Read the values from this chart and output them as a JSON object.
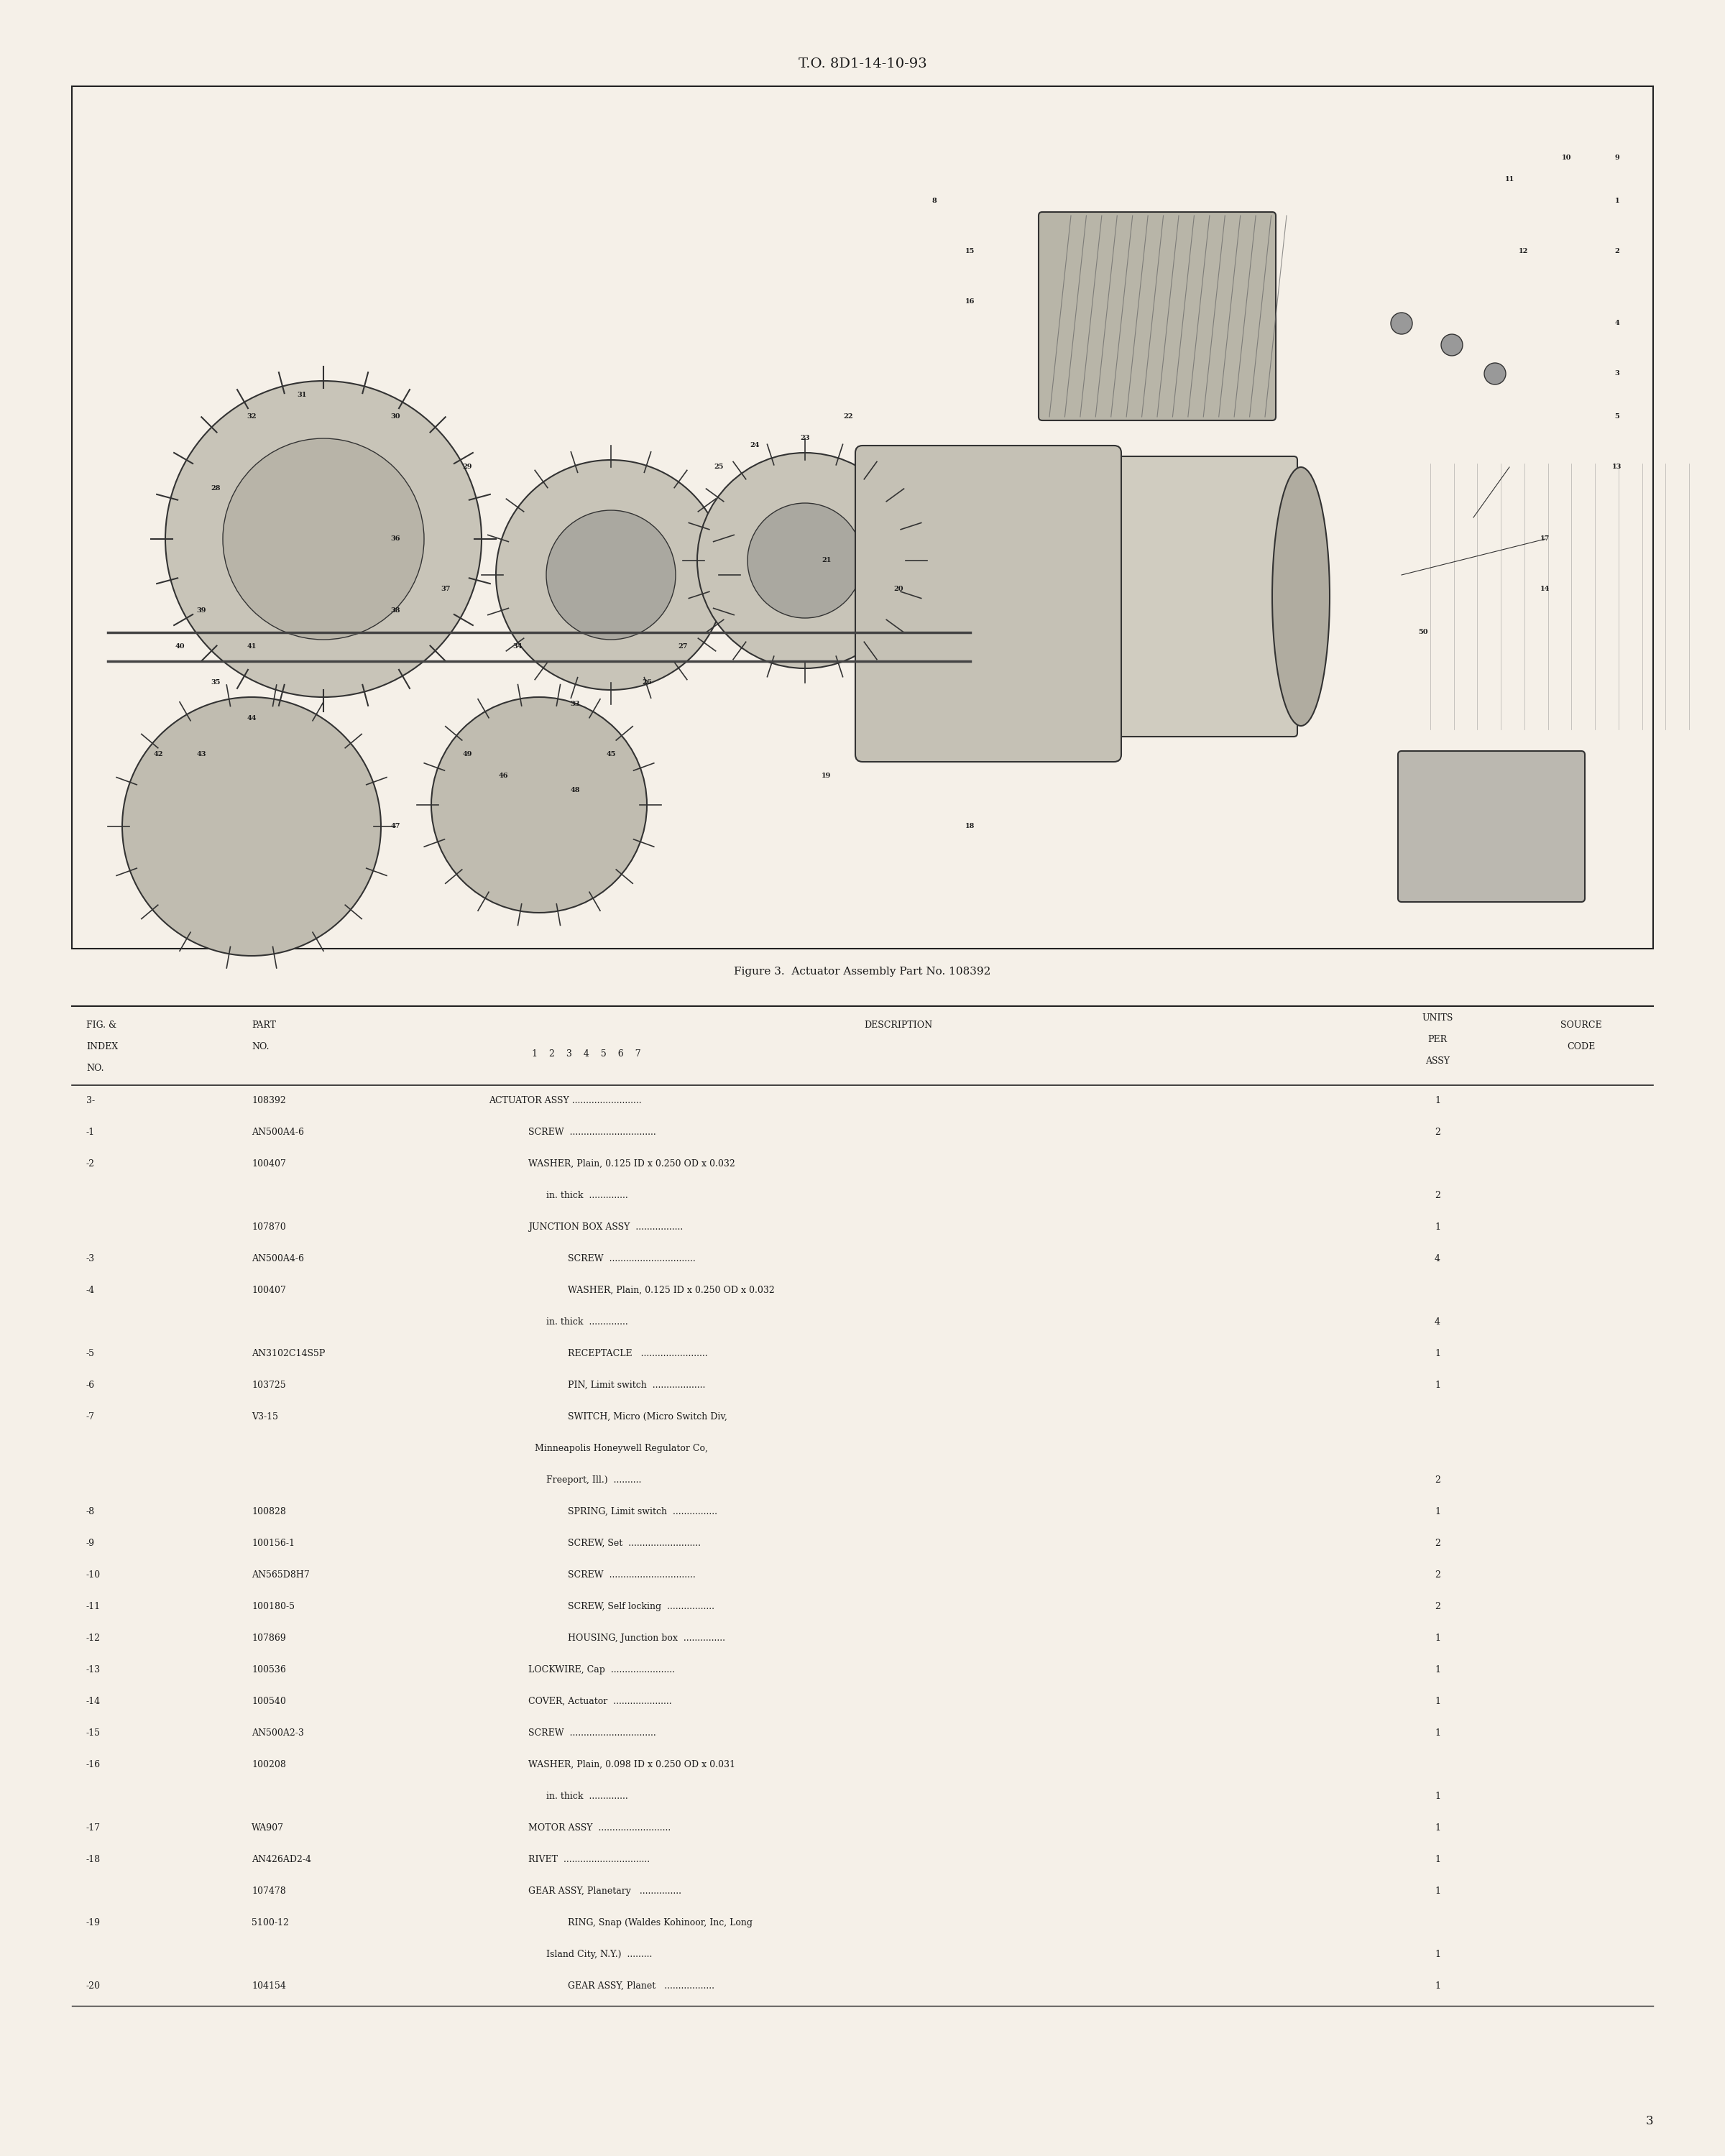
{
  "header_text": "T.O. 8D1-14-10-93",
  "figure_caption": "Figure 3.  Actuator Assembly Part No. 108392",
  "page_number": "3",
  "bg_color": "#f5f0e8",
  "table_header": {
    "col1": "FIG. &\nINDEX\nNO.",
    "col2": "PART\nNO.",
    "col3": "DESCRIPTION",
    "col4": "UNITS\nPER\nASSY",
    "col5": "SOURCE\nCODE",
    "sub_cols": "1    2    3    4    5    6    7"
  },
  "rows": [
    {
      "fig": "3-",
      "part": "108392",
      "indent": 0,
      "desc": "ACTUATOR ASSY .........................",
      "units": "1",
      "source": ""
    },
    {
      "fig": "-1",
      "part": "AN500A4-6",
      "indent": 1,
      "desc": "SCREW  ...............................",
      "units": "2",
      "source": ""
    },
    {
      "fig": "-2",
      "part": "100407",
      "indent": 1,
      "desc": "WASHER, Plain, 0.125 ID x 0.250 OD x 0.032",
      "units": "",
      "source": ""
    },
    {
      "fig": "",
      "part": "",
      "indent": 0,
      "desc": "                    in. thick  ..............",
      "units": "2",
      "source": ""
    },
    {
      "fig": "",
      "part": "107870",
      "indent": 1,
      "desc": "JUNCTION BOX ASSY  .................",
      "units": "1",
      "source": ""
    },
    {
      "fig": "-3",
      "part": "AN500A4-6",
      "indent": 2,
      "desc": "SCREW  ...............................",
      "units": "4",
      "source": ""
    },
    {
      "fig": "-4",
      "part": "100407",
      "indent": 2,
      "desc": "WASHER, Plain, 0.125 ID x 0.250 OD x 0.032",
      "units": "",
      "source": ""
    },
    {
      "fig": "",
      "part": "",
      "indent": 0,
      "desc": "                    in. thick  ..............",
      "units": "4",
      "source": ""
    },
    {
      "fig": "-5",
      "part": "AN3102C14S5P",
      "indent": 2,
      "desc": "RECEPTACLE   ........................",
      "units": "1",
      "source": ""
    },
    {
      "fig": "-6",
      "part": "103725",
      "indent": 2,
      "desc": "PIN, Limit switch  ...................",
      "units": "1",
      "source": ""
    },
    {
      "fig": "-7",
      "part": "V3-15",
      "indent": 2,
      "desc": "SWITCH, Micro (Micro Switch Div,",
      "units": "",
      "source": ""
    },
    {
      "fig": "",
      "part": "",
      "indent": 0,
      "desc": "                Minneapolis Honeywell Regulator Co,",
      "units": "",
      "source": ""
    },
    {
      "fig": "",
      "part": "",
      "indent": 0,
      "desc": "                    Freeport, Ill.)  ..........",
      "units": "2",
      "source": ""
    },
    {
      "fig": "-8",
      "part": "100828",
      "indent": 2,
      "desc": "SPRING, Limit switch  ................",
      "units": "1",
      "source": ""
    },
    {
      "fig": "-9",
      "part": "100156-1",
      "indent": 2,
      "desc": "SCREW, Set  ..........................",
      "units": "2",
      "source": ""
    },
    {
      "fig": "-10",
      "part": "AN565D8H7",
      "indent": 2,
      "desc": "SCREW  ...............................",
      "units": "2",
      "source": ""
    },
    {
      "fig": "-11",
      "part": "100180-5",
      "indent": 2,
      "desc": "SCREW, Self locking  .................",
      "units": "2",
      "source": ""
    },
    {
      "fig": "-12",
      "part": "107869",
      "indent": 2,
      "desc": "HOUSING, Junction box  ...............",
      "units": "1",
      "source": ""
    },
    {
      "fig": "-13",
      "part": "100536",
      "indent": 1,
      "desc": "LOCKWIRE, Cap  .......................",
      "units": "1",
      "source": ""
    },
    {
      "fig": "-14",
      "part": "100540",
      "indent": 1,
      "desc": "COVER, Actuator  .....................",
      "units": "1",
      "source": ""
    },
    {
      "fig": "-15",
      "part": "AN500A2-3",
      "indent": 1,
      "desc": "SCREW  ...............................",
      "units": "1",
      "source": ""
    },
    {
      "fig": "-16",
      "part": "100208",
      "indent": 1,
      "desc": "WASHER, Plain, 0.098 ID x 0.250 OD x 0.031",
      "units": "",
      "source": ""
    },
    {
      "fig": "",
      "part": "",
      "indent": 0,
      "desc": "                    in. thick  ..............",
      "units": "1",
      "source": ""
    },
    {
      "fig": "-17",
      "part": "WA907",
      "indent": 1,
      "desc": "MOTOR ASSY  ..........................",
      "units": "1",
      "source": ""
    },
    {
      "fig": "-18",
      "part": "AN426AD2-4",
      "indent": 1,
      "desc": "RIVET  ...............................",
      "units": "1",
      "source": ""
    },
    {
      "fig": "",
      "part": "107478",
      "indent": 1,
      "desc": "GEAR ASSY, Planetary   ...............",
      "units": "1",
      "source": ""
    },
    {
      "fig": "-19",
      "part": "5100-12",
      "indent": 2,
      "desc": "RING, Snap (Waldes Kohinoor, Inc, Long",
      "units": "",
      "source": ""
    },
    {
      "fig": "",
      "part": "",
      "indent": 0,
      "desc": "                    Island City, N.Y.)  .........",
      "units": "1",
      "source": ""
    },
    {
      "fig": "-20",
      "part": "104154",
      "indent": 2,
      "desc": "GEAR ASSY, Planet   ..................",
      "units": "1",
      "source": ""
    }
  ]
}
